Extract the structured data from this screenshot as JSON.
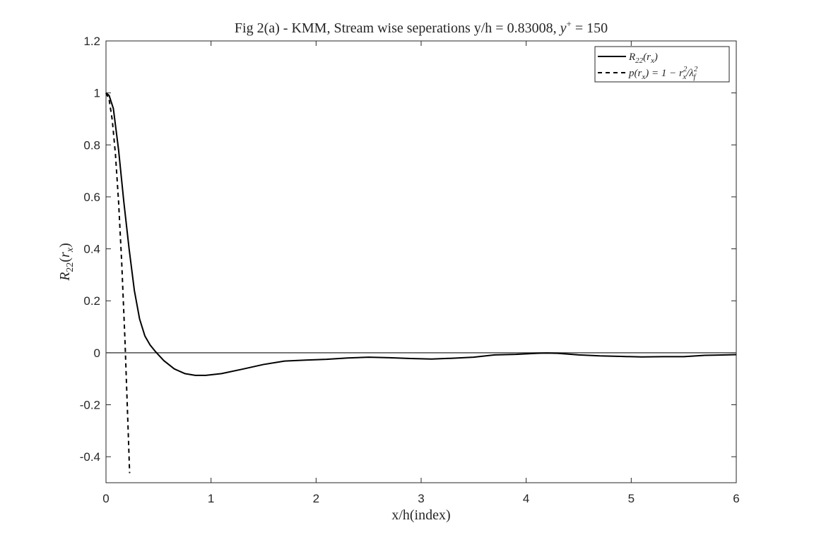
{
  "chart_data": {
    "type": "line",
    "title": "Fig 2(a) - KMM, Stream wise seperations y/h = 0.83008,",
    "title_math": {
      "var": "y",
      "sup": "+",
      "rest": " = 150"
    },
    "xlabel": "x/h(index)",
    "ylabel": {
      "base": "R",
      "sub": "22",
      "open": "(",
      "arg": "r",
      "argsub": "x",
      "close": ")"
    },
    "xlim": [
      0,
      6
    ],
    "ylim": [
      -0.5,
      1.2
    ],
    "xticks": [
      0,
      1,
      2,
      3,
      4,
      5,
      6
    ],
    "yticks": [
      -0.4,
      -0.2,
      0,
      0.2,
      0.4,
      0.6,
      0.8,
      1,
      1.2
    ],
    "xtick_labels": [
      "0",
      "1",
      "2",
      "3",
      "4",
      "5",
      "6"
    ],
    "ytick_labels": [
      "-0.4",
      "-0.2",
      "0",
      "0.2",
      "0.4",
      "0.6",
      "0.8",
      "1",
      "1.2"
    ],
    "grid": false,
    "zero_line": true,
    "legend_placement": "top-right",
    "legend": [
      {
        "style": "solid",
        "label_main": "R",
        "label_sub": "22",
        "label_rest": "(r",
        "label_rest_sub": "x",
        "label_end": ")"
      },
      {
        "style": "dashed",
        "label": "p(r",
        "label_sub": "x",
        "label_mid": ") = 1 − r",
        "label_sup2": "2",
        "label_sub2": "x",
        "label_mid2": "/λ",
        "label_sup3": "2",
        "label_sub3": "f"
      }
    ],
    "series": [
      {
        "style": "solid",
        "x": [
          0,
          0.03,
          0.07,
          0.12,
          0.17,
          0.22,
          0.27,
          0.32,
          0.37,
          0.42,
          0.47,
          0.55,
          0.65,
          0.75,
          0.85,
          0.95,
          1.1,
          1.3,
          1.5,
          1.7,
          1.9,
          2.1,
          2.3,
          2.5,
          2.7,
          2.9,
          3.1,
          3.3,
          3.5,
          3.7,
          3.9,
          4.1,
          4.2,
          4.3,
          4.5,
          4.7,
          4.9,
          5.1,
          5.3,
          5.5,
          5.7,
          5.9,
          6.0
        ],
        "y": [
          1,
          0.99,
          0.94,
          0.78,
          0.58,
          0.4,
          0.24,
          0.13,
          0.065,
          0.03,
          0.005,
          -0.03,
          -0.062,
          -0.08,
          -0.087,
          -0.087,
          -0.08,
          -0.063,
          -0.045,
          -0.032,
          -0.028,
          -0.025,
          -0.02,
          -0.017,
          -0.019,
          -0.022,
          -0.024,
          -0.021,
          -0.017,
          -0.008,
          -0.006,
          -0.002,
          -0.001,
          -0.002,
          -0.008,
          -0.012,
          -0.014,
          -0.016,
          -0.015,
          -0.015,
          -0.01,
          -0.008,
          -0.007
        ]
      },
      {
        "style": "dashed",
        "x": [
          0,
          0.03,
          0.06,
          0.09,
          0.12,
          0.15,
          0.18,
          0.21,
          0.225
        ],
        "y": [
          1,
          0.974,
          0.895,
          0.764,
          0.58,
          0.344,
          0.055,
          -0.287,
          -0.463
        ]
      }
    ]
  }
}
